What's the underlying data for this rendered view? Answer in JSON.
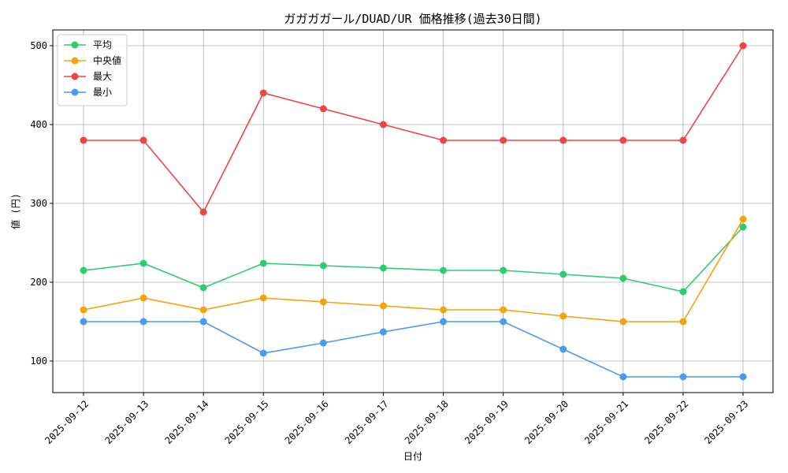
{
  "chart_data": {
    "type": "line",
    "title": "ガガガガール/DUAD/UR 価格推移(過去30日間)",
    "xlabel": "日付",
    "ylabel": "値 (円)",
    "ylim": [
      60,
      520
    ],
    "yticks": [
      100,
      200,
      300,
      400,
      500
    ],
    "grid": true,
    "legend_position": "top-left",
    "categories": [
      "2025-09-12",
      "2025-09-13",
      "2025-09-14",
      "2025-09-15",
      "2025-09-16",
      "2025-09-17",
      "2025-09-18",
      "2025-09-19",
      "2025-09-20",
      "2025-09-21",
      "2025-09-22",
      "2025-09-23"
    ],
    "series": [
      {
        "name": "平均",
        "color": "#2ecc71",
        "values": [
          215,
          224,
          193,
          224,
          221,
          218,
          215,
          215,
          210,
          205,
          188,
          270
        ]
      },
      {
        "name": "中央値",
        "color": "#f5a30b",
        "values": [
          165,
          180,
          165,
          180,
          175,
          170,
          165,
          165,
          157,
          150,
          150,
          280
        ]
      },
      {
        "name": "最大",
        "color": "#ef4444",
        "values": [
          380,
          380,
          289,
          440,
          420,
          400,
          380,
          380,
          380,
          380,
          380,
          500
        ]
      },
      {
        "name": "最小",
        "color": "#4a9af0",
        "values": [
          150,
          150,
          150,
          110,
          123,
          137,
          150,
          150,
          115,
          80,
          80,
          80
        ]
      }
    ]
  }
}
